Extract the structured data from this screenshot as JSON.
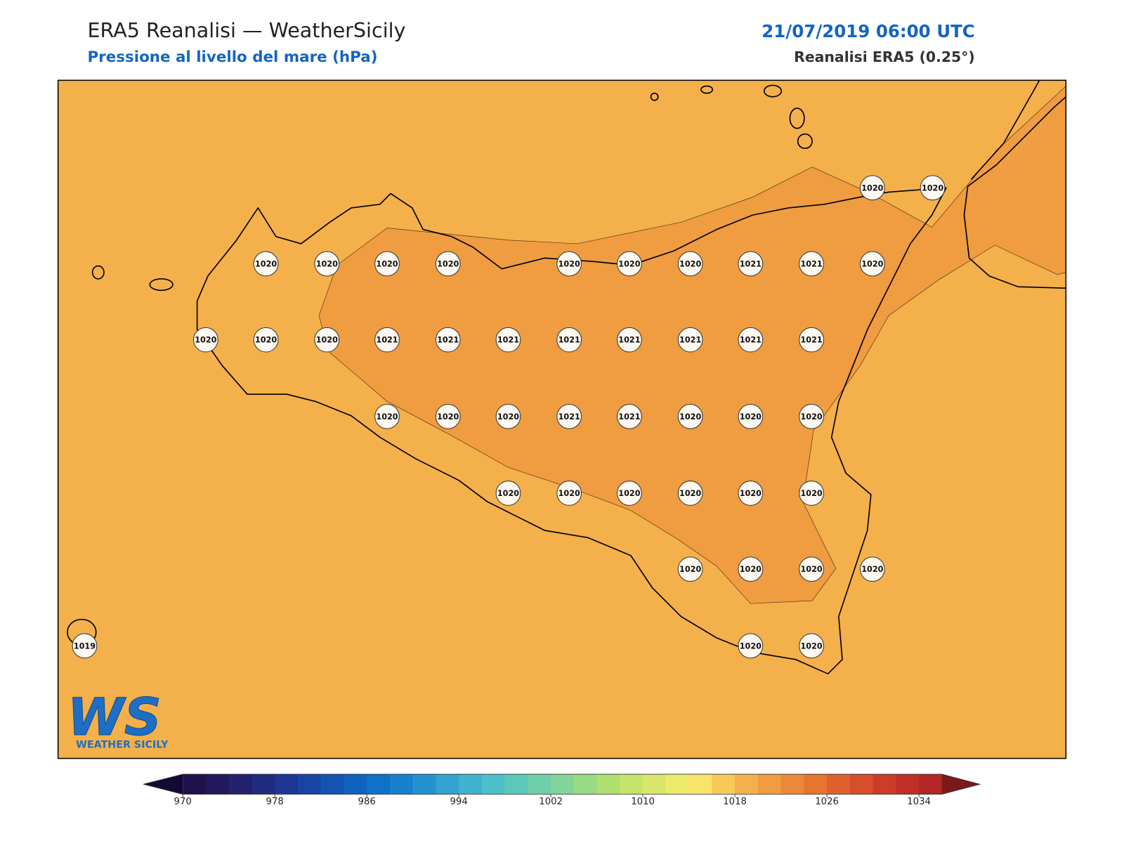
{
  "header": {
    "title": "ERA5 Reanalisi — WeatherSicily",
    "subtitle": "Pressione al livello del mare (hPa)",
    "date": "21/07/2019 06:00 UTC",
    "source": "Reanalisi ERA5 (0.25°)"
  },
  "stations": [
    1020,
    1020,
    1020,
    1020,
    1020,
    1020,
    1020,
    1020,
    1020,
    1021,
    1021,
    1020,
    1020,
    1020,
    1020,
    1021,
    1021,
    1021,
    1021,
    1021,
    1021,
    1021,
    1021,
    1020,
    1020,
    1020,
    1021,
    1021,
    1020,
    1020,
    1020,
    1020,
    1020,
    1020,
    1020,
    1020,
    1020,
    1020,
    1020,
    1020,
    1020,
    1019,
    1020,
    1020
  ],
  "colorbar": {
    "lim": [
      970,
      1036
    ],
    "ticks": [
      970,
      978,
      986,
      994,
      1002,
      1010,
      1018,
      1026,
      1034
    ],
    "colors": [
      "#20124d",
      "#23195e",
      "#24216e",
      "#212b80",
      "#1d3792",
      "#1845a3",
      "#1353b2",
      "#0f62be",
      "#0f71c7",
      "#1881cd",
      "#2592d0",
      "#33a3d2",
      "#3fb3d0",
      "#4dbfc8",
      "#5cc8ba",
      "#6ecfaa",
      "#82d597",
      "#99da84",
      "#b0df72",
      "#c6e36b",
      "#dae66b",
      "#ecea6b",
      "#f9e36a",
      "#f8c858",
      "#f4b04a",
      "#f09c40",
      "#ec8838",
      "#e7742f",
      "#e0602c",
      "#d64e2b",
      "#cc3d29",
      "#c02e28",
      "#b32626"
    ],
    "under_color": "#150a35",
    "over_color": "#7a1a1a"
  },
  "logo": {
    "mark": "WS",
    "text": "WEATHER SICILY"
  }
}
